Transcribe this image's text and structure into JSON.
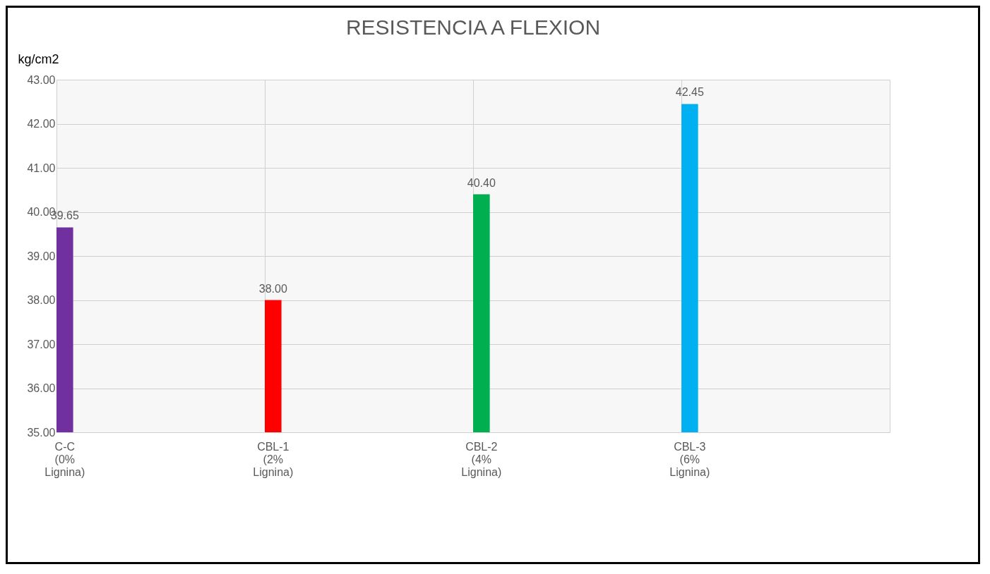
{
  "chart_data": {
    "type": "bar",
    "title": "RESISTENCIA A FLEXION",
    "ylabel": "kg/cm2",
    "categories": [
      "C-C (0% Lignina)",
      "CBL-1 (2% Lignina)",
      "CBL-2 (4% Lignina)",
      "CBL-3 (6% Lignina)"
    ],
    "values": [
      39.65,
      38.0,
      40.4,
      42.45
    ],
    "colors": [
      "#7030a0",
      "#ff0000",
      "#00b050",
      "#00b0f0"
    ],
    "value_labels": [
      "39.65",
      "38.00",
      "40.40",
      "42.45"
    ],
    "ylim": [
      35,
      43
    ],
    "yticks": [
      {
        "value": 35,
        "label": "35.00"
      },
      {
        "value": 36,
        "label": "36.00"
      },
      {
        "value": 37,
        "label": "37.00"
      },
      {
        "value": 38,
        "label": "38.00"
      },
      {
        "value": 39,
        "label": "39.00"
      },
      {
        "value": 40,
        "label": "40.00"
      },
      {
        "value": 41,
        "label": "41.00"
      },
      {
        "value": 42,
        "label": "42.00"
      },
      {
        "value": 43,
        "label": "43.00"
      }
    ],
    "grid": true
  }
}
